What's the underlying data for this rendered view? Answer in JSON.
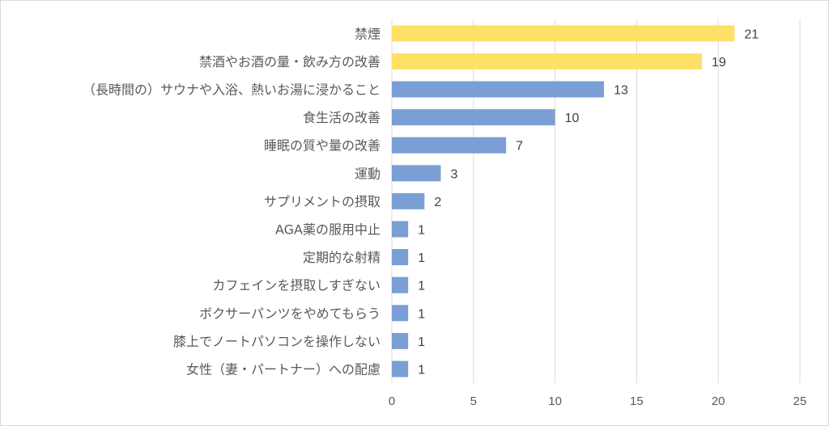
{
  "chart_data": {
    "type": "bar",
    "orientation": "horizontal",
    "title": "",
    "xlabel": "",
    "ylabel": "",
    "xlim": [
      0,
      25
    ],
    "xticks": [
      0,
      5,
      10,
      15,
      20,
      25
    ],
    "grid": true,
    "legend": "none",
    "categories": [
      "禁煙",
      "禁酒やお酒の量・飲み方の改善",
      "（長時間の）サウナや入浴、熱いお湯に浸かること",
      "食生活の改善",
      "睡眠の質や量の改善",
      "運動",
      "サプリメントの摂取",
      "AGA薬の服用中止",
      "定期的な射精",
      "カフェインを摂取しすぎない",
      "ボクサーパンツをやめてもらう",
      "膝上でノートパソコンを操作しない",
      "女性（妻・パートナー）への配慮"
    ],
    "values": [
      21,
      19,
      13,
      10,
      7,
      3,
      2,
      1,
      1,
      1,
      1,
      1,
      1
    ],
    "colors": [
      "#ffe066",
      "#ffe066",
      "#7b9fd4",
      "#7b9fd4",
      "#7b9fd4",
      "#7b9fd4",
      "#7b9fd4",
      "#7b9fd4",
      "#7b9fd4",
      "#7b9fd4",
      "#7b9fd4",
      "#7b9fd4",
      "#7b9fd4"
    ]
  }
}
